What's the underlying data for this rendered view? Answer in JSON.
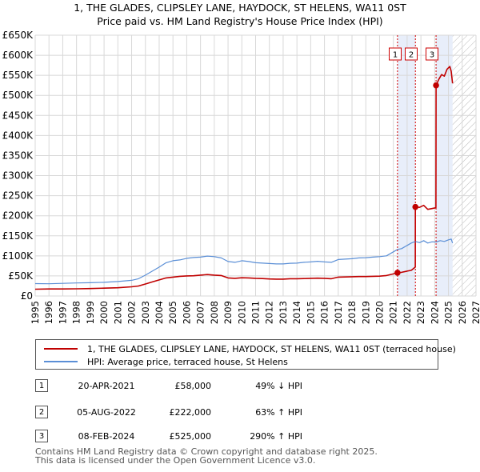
{
  "chart_data": {
    "type": "line",
    "title": "1, THE GLADES, CLIPSLEY LANE, HAYDOCK, ST HELENS, WA11 0ST",
    "subtitle": "Price paid vs. HM Land Registry's House Price Index (HPI)",
    "xlim": [
      1995,
      2027
    ],
    "ylim": [
      0,
      650000
    ],
    "y_ticks": [
      0,
      50000,
      100000,
      150000,
      200000,
      250000,
      300000,
      350000,
      400000,
      450000,
      500000,
      550000,
      600000,
      650000
    ],
    "y_tick_labels": [
      "£0",
      "£50K",
      "£100K",
      "£150K",
      "£200K",
      "£250K",
      "£300K",
      "£350K",
      "£400K",
      "£450K",
      "£500K",
      "£550K",
      "£600K",
      "£650K"
    ],
    "x_ticks": [
      1995,
      1996,
      1997,
      1998,
      1999,
      2000,
      2001,
      2002,
      2003,
      2004,
      2005,
      2006,
      2007,
      2008,
      2009,
      2010,
      2011,
      2012,
      2013,
      2014,
      2015,
      2016,
      2017,
      2018,
      2019,
      2020,
      2021,
      2022,
      2023,
      2024,
      2025,
      2026,
      2027
    ],
    "x_tick_labels": [
      "1995",
      "1996",
      "1997",
      "1998",
      "1999",
      "2000",
      "2001",
      "2002",
      "2003",
      "2004",
      "2005",
      "2006",
      "2007",
      "2008",
      "2009",
      "2010",
      "2011",
      "2012",
      "2013",
      "2014",
      "2015",
      "2016",
      "2017",
      "2018",
      "2019",
      "2020",
      "2021",
      "2022",
      "2023",
      "2024",
      "2025",
      "2026",
      "2027"
    ],
    "grid": true,
    "shaded_periods": [
      [
        2021.3,
        2022.6
      ],
      [
        2024.1,
        2025.3
      ]
    ],
    "future_hatch_from": 2025.3,
    "series": [
      {
        "name": "1, THE GLADES, CLIPSLEY LANE, HAYDOCK, ST HELENS, WA11 0ST (terraced house)",
        "color": "#c00000",
        "points": [
          [
            1995,
            17000
          ],
          [
            1996,
            17500
          ],
          [
            1997,
            17600
          ],
          [
            1998,
            18000
          ],
          [
            1999,
            18500
          ],
          [
            2000,
            19500
          ],
          [
            2001,
            20500
          ],
          [
            2002,
            23000
          ],
          [
            2002.5,
            25000
          ],
          [
            2003,
            30000
          ],
          [
            2003.5,
            35000
          ],
          [
            2004,
            40000
          ],
          [
            2004.5,
            45000
          ],
          [
            2005,
            47000
          ],
          [
            2005.5,
            49000
          ],
          [
            2006,
            50000
          ],
          [
            2006.5,
            50500
          ],
          [
            2007,
            52000
          ],
          [
            2007.5,
            53500
          ],
          [
            2008,
            52000
          ],
          [
            2008.5,
            51000
          ],
          [
            2009,
            45000
          ],
          [
            2009.5,
            44000
          ],
          [
            2010,
            45500
          ],
          [
            2010.5,
            45000
          ],
          [
            2011,
            44000
          ],
          [
            2011.5,
            43500
          ],
          [
            2012,
            42500
          ],
          [
            2012.5,
            42000
          ],
          [
            2013,
            42000
          ],
          [
            2013.5,
            43000
          ],
          [
            2014,
            43000
          ],
          [
            2014.5,
            43500
          ],
          [
            2015,
            44000
          ],
          [
            2015.5,
            44500
          ],
          [
            2016,
            44000
          ],
          [
            2016.5,
            43000
          ],
          [
            2017,
            47000
          ],
          [
            2017.5,
            47500
          ],
          [
            2018,
            48000
          ],
          [
            2018.5,
            48500
          ],
          [
            2019,
            48500
          ],
          [
            2019.5,
            49000
          ],
          [
            2020,
            49500
          ],
          [
            2020.5,
            51000
          ],
          [
            2021,
            55000
          ],
          [
            2021.3,
            58000
          ],
          [
            2021.6,
            59000
          ],
          [
            2022,
            62000
          ],
          [
            2022.3,
            64000
          ],
          [
            2022.59,
            72000
          ],
          [
            2022.6,
            222000
          ],
          [
            2022.9,
            221000
          ],
          [
            2023.2,
            226000
          ],
          [
            2023.5,
            216000
          ],
          [
            2023.8,
            218000
          ],
          [
            2024.09,
            220000
          ],
          [
            2024.1,
            525000
          ],
          [
            2024.3,
            540000
          ],
          [
            2024.5,
            552000
          ],
          [
            2024.7,
            548000
          ],
          [
            2024.9,
            565000
          ],
          [
            2025.1,
            572000
          ],
          [
            2025.2,
            560000
          ],
          [
            2025.3,
            530000
          ]
        ]
      },
      {
        "name": "HPI: Average price, terraced house, St Helens",
        "color": "#5b8fd6",
        "points": [
          [
            1995,
            31000
          ],
          [
            1996,
            30500
          ],
          [
            1997,
            31500
          ],
          [
            1998,
            32500
          ],
          [
            1999,
            33000
          ],
          [
            2000,
            34000
          ],
          [
            2001,
            36000
          ],
          [
            2002,
            39000
          ],
          [
            2002.5,
            43000
          ],
          [
            2003,
            52000
          ],
          [
            2003.5,
            62000
          ],
          [
            2004,
            72000
          ],
          [
            2004.5,
            83000
          ],
          [
            2005,
            88000
          ],
          [
            2005.5,
            90000
          ],
          [
            2006,
            94000
          ],
          [
            2006.5,
            96000
          ],
          [
            2007,
            97000
          ],
          [
            2007.5,
            99500
          ],
          [
            2008,
            98000
          ],
          [
            2008.5,
            95000
          ],
          [
            2009,
            86000
          ],
          [
            2009.5,
            84000
          ],
          [
            2010,
            88000
          ],
          [
            2010.5,
            86000
          ],
          [
            2011,
            83000
          ],
          [
            2011.5,
            82000
          ],
          [
            2012,
            81000
          ],
          [
            2012.5,
            80000
          ],
          [
            2013,
            80000
          ],
          [
            2013.5,
            81500
          ],
          [
            2014,
            82000
          ],
          [
            2014.5,
            84000
          ],
          [
            2015,
            85000
          ],
          [
            2015.5,
            86500
          ],
          [
            2016,
            85000
          ],
          [
            2016.5,
            84000
          ],
          [
            2017,
            91000
          ],
          [
            2017.5,
            92000
          ],
          [
            2018,
            93000
          ],
          [
            2018.5,
            95000
          ],
          [
            2019,
            95500
          ],
          [
            2019.5,
            97000
          ],
          [
            2020,
            98000
          ],
          [
            2020.5,
            100000
          ],
          [
            2021,
            110000
          ],
          [
            2021.3,
            116000
          ],
          [
            2021.6,
            118000
          ],
          [
            2022,
            126000
          ],
          [
            2022.3,
            132000
          ],
          [
            2022.6,
            136000
          ],
          [
            2022.9,
            133000
          ],
          [
            2023.2,
            138000
          ],
          [
            2023.5,
            132000
          ],
          [
            2023.8,
            135000
          ],
          [
            2024.1,
            134500
          ],
          [
            2024.4,
            138000
          ],
          [
            2024.7,
            136000
          ],
          [
            2025.0,
            140000
          ],
          [
            2025.2,
            142000
          ],
          [
            2025.3,
            132000
          ]
        ]
      }
    ],
    "sale_markers": [
      {
        "label": "1",
        "x": 2021.3,
        "price": 58000
      },
      {
        "label": "2",
        "x": 2022.6,
        "price": 222000
      },
      {
        "label": "3",
        "x": 2024.1,
        "price": 525000
      }
    ]
  },
  "legend": {
    "property_label": "1, THE GLADES, CLIPSLEY LANE, HAYDOCK, ST HELENS, WA11 0ST (terraced house)",
    "hpi_label": "HPI: Average price, terraced house, St Helens",
    "property_color": "#c00000",
    "hpi_color": "#5b8fd6"
  },
  "sales": [
    {
      "label": "1",
      "date": "20-APR-2021",
      "price": "£58,000",
      "hpi": "49% ↓ HPI"
    },
    {
      "label": "2",
      "date": "05-AUG-2022",
      "price": "£222,000",
      "hpi": "63% ↑ HPI"
    },
    {
      "label": "3",
      "date": "08-FEB-2024",
      "price": "£525,000",
      "hpi": "290% ↑ HPI"
    }
  ],
  "footer": {
    "line1": "Contains HM Land Registry data © Crown copyright and database right 2025.",
    "line2": "This data is licensed under the Open Government Licence v3.0."
  }
}
